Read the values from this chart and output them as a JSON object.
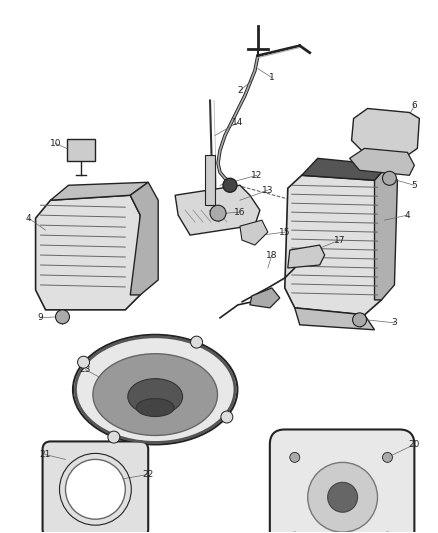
{
  "bg_color": "#ffffff",
  "line_color": "#222222",
  "fig_width": 4.38,
  "fig_height": 5.33,
  "dpi": 100
}
